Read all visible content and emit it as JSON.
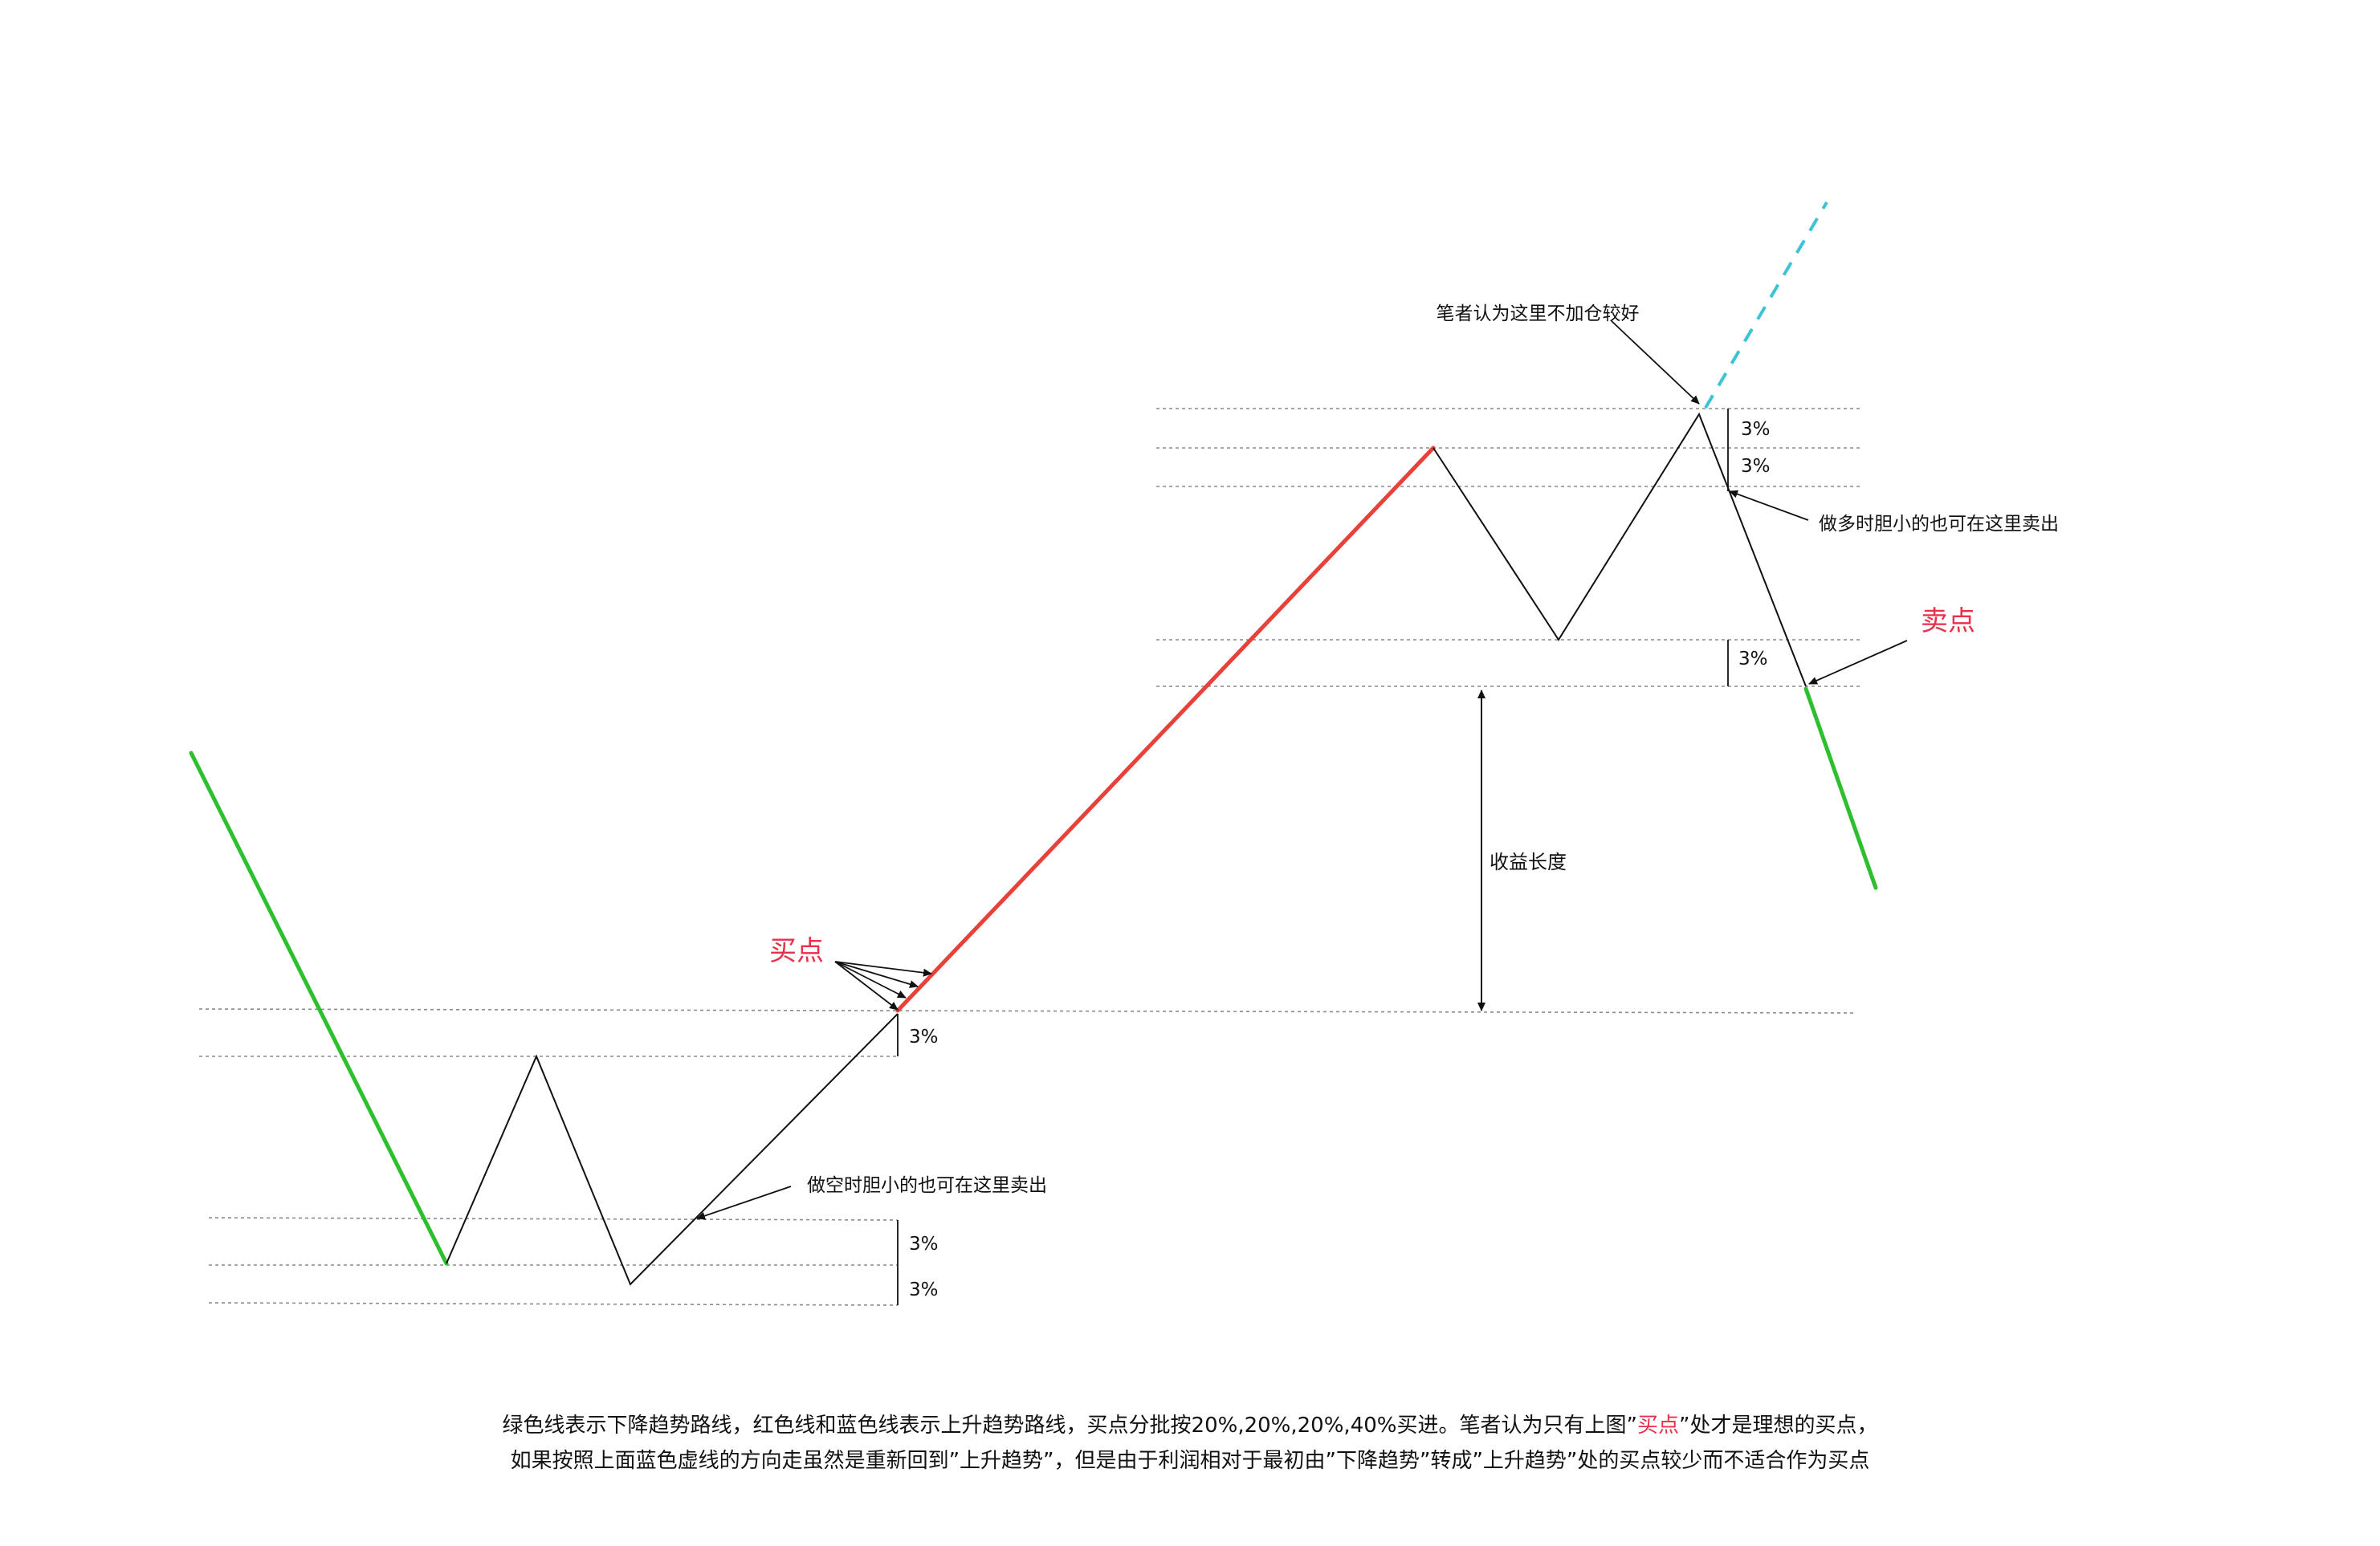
{
  "colors": {
    "downtrend": "#2dbf2d",
    "uptrend": "#e8413a",
    "dashed_up": "#3ec3d6",
    "accent_text": "#e8304a",
    "line": "#111111",
    "grid": "#8a8a8a"
  },
  "labels": {
    "buy_point": "买点",
    "sell_point": "卖点",
    "no_add_here": "笔者认为这里不加仓较好",
    "long_timid_sell": "做多时胆小的也可在这里卖出",
    "short_timid_sell": "做空时胆小的也可在这里卖出",
    "profit_length": "收益长度",
    "pct": "3%"
  },
  "caption": {
    "line1_a": "绿色线表示下降趋势路线，红色线和蓝色线表示上升趋势路线，买点分批按20%,20%,20%,40%买进。笔者认为只有上图”",
    "line1_hl": "买点",
    "line1_b": "”处才是理想的买点，",
    "line2": "如果按照上面蓝色虚线的方向走虽然是重新回到”上升趋势”，但是由于利润相对于最初由”下降趋势”转成”上升趋势”处的买点较少而不适合作为买点"
  }
}
